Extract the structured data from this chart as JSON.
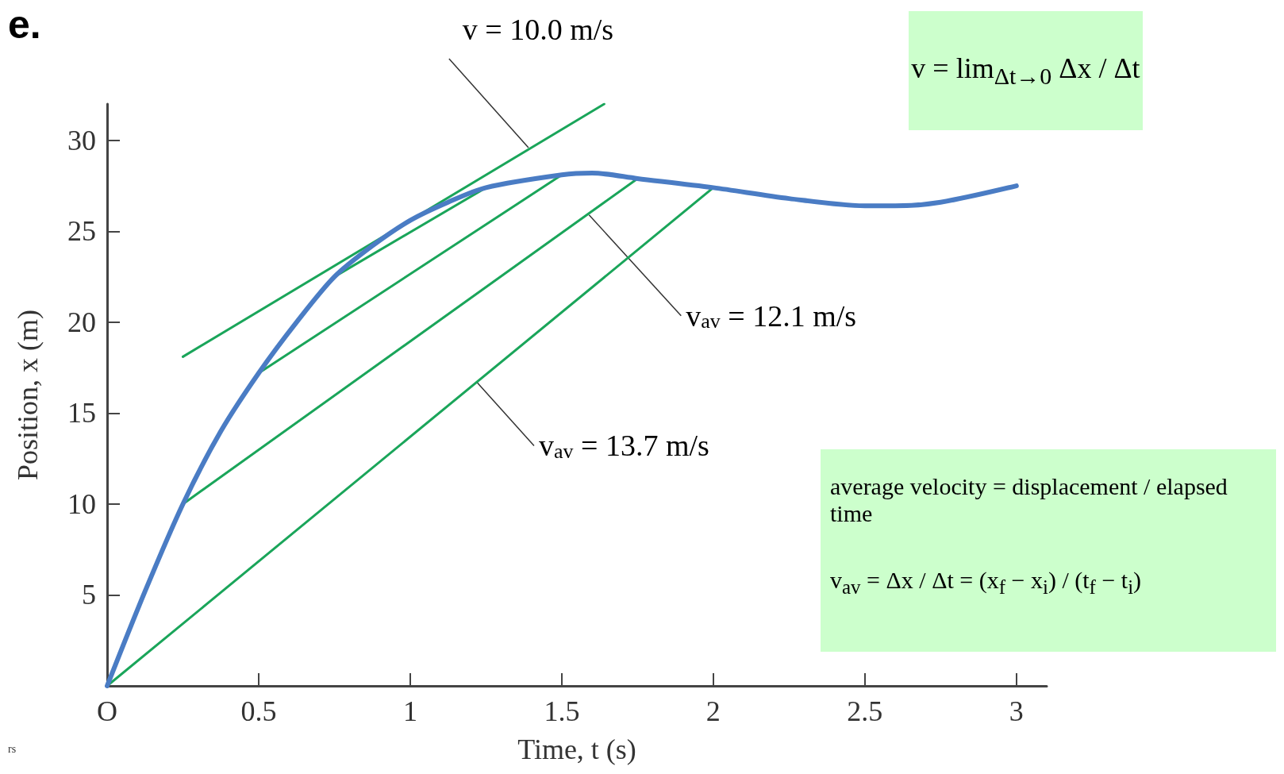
{
  "chart_data": {
    "type": "line",
    "xlabel": "Time, t (s)",
    "ylabel": "Position, x (m)",
    "xlim": [
      0,
      3.1
    ],
    "ylim": [
      0,
      32
    ],
    "xticks": [
      {
        "value": 0,
        "label": "O"
      },
      0.5,
      1,
      1.5,
      2,
      2.5,
      3
    ],
    "yticks": [
      5,
      10,
      15,
      20,
      25,
      30
    ],
    "marker": "none",
    "line_style": "solid",
    "series": [
      {
        "color": "#4a7cc4",
        "x": [
          0,
          0.125,
          0.25,
          0.375,
          0.5,
          0.625,
          0.75,
          0.875,
          1,
          1.125,
          1.25,
          1.5,
          1.6,
          1.75,
          2,
          2.25,
          2.5,
          2.6,
          2.75,
          3
        ],
        "values": [
          0,
          5.2,
          10,
          14,
          17.2,
          20,
          22.5,
          24.2,
          25.6,
          26.6,
          27.4,
          28.1,
          28.2,
          27.9,
          27.4,
          26.8,
          26.4,
          26.4,
          26.6,
          27.5
        ]
      },
      {
        "color": "#1aa55a",
        "x": [
          0.25,
          1.64
        ],
        "values": [
          18.1,
          32
        ]
      },
      {
        "color": "#1aa55a",
        "x": [
          0.75,
          1.25
        ],
        "values": [
          22.5,
          27.4
        ]
      },
      {
        "color": "#1aa55a",
        "x": [
          0.5,
          1.5
        ],
        "values": [
          17.2,
          28.1
        ]
      },
      {
        "color": "#1aa55a",
        "x": [
          0.25,
          1.75
        ],
        "values": [
          10,
          27.9
        ]
      },
      {
        "color": "#1aa55a",
        "x": [
          0,
          2
        ],
        "values": [
          0,
          27.4
        ]
      }
    ],
    "annotations": [
      "e.",
      "rs",
      {
        "text": "v = 10.0 m/s",
        "x": 1.39,
        "y": 29.6
      },
      {
        "text": "v$_{av}$ = 12.1 m/s",
        "x": 1.59,
        "y": 25.9
      },
      {
        "text": "v$_{av}$ = 13.7 m/s",
        "x": 1.22,
        "y": 16.7
      },
      "v = lim$_{Δt→0}$ Δx / Δt",
      "average velocity = displacement / elapsed time",
      "v$_{av}$ = Δx / Δt = (x$_{f}$ − x$_{i}$) / (t$_{f}$ − t$_{i}$)"
    ]
  }
}
